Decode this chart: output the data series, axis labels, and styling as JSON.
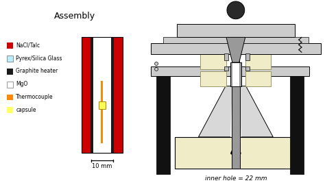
{
  "title": "Assembly",
  "legend_items": [
    {
      "label": "NaCl/Talc",
      "color": "#cc0000"
    },
    {
      "label": "Pyrex/Silica Glass",
      "color": "#b8eeff"
    },
    {
      "label": "Graphite heater",
      "color": "#1a1a1a"
    },
    {
      "label": "MgO",
      "color": "#ffffff"
    },
    {
      "label": "Thermocouple",
      "color": "#ff8800"
    },
    {
      "label": "capsule",
      "color": "#ffff66"
    }
  ],
  "scale_bar_label": "10 mm",
  "bottom_label": "inner hole = 22 mm",
  "bg_color": "#ffffff",
  "nacl_color": "#cc0000",
  "pyrex_color": "#b8eeff",
  "graphite_color": "#1a1a1a",
  "mgo_color": "#ffffff",
  "thermocouple_color": "#ff8800",
  "capsule_color": "#ffff55",
  "steel_gray": "#999999",
  "mid_gray": "#bbbbbb",
  "light_gray": "#cccccc",
  "dark_gray": "#555555",
  "black": "#111111",
  "cream": "#f0ecc8",
  "pale_gray": "#d8d8d8"
}
